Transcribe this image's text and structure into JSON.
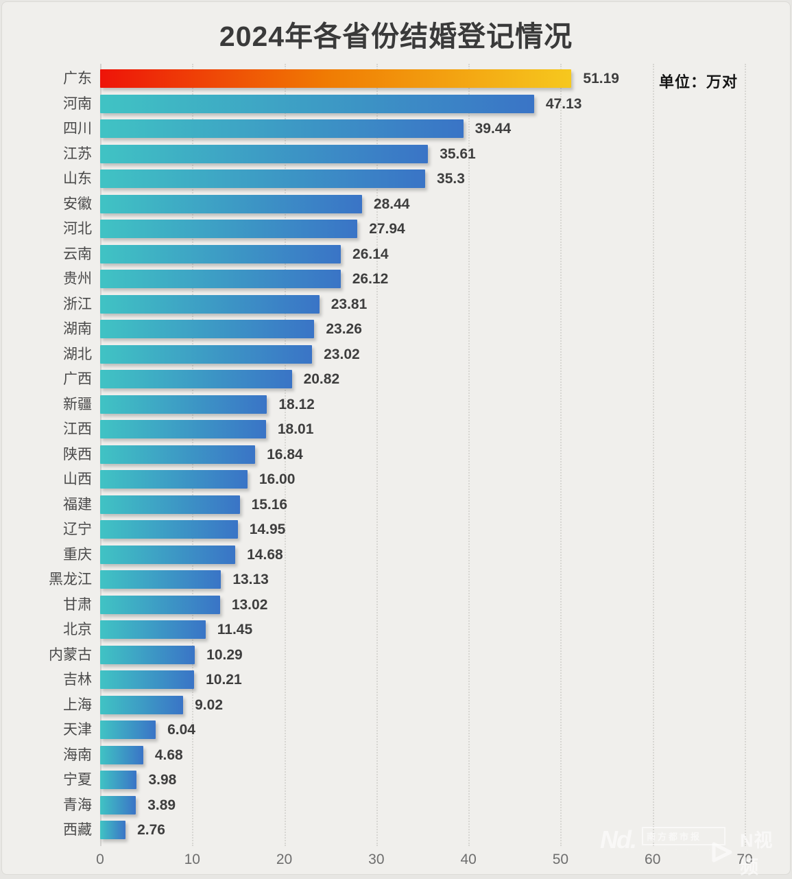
{
  "title": "2024年各省份结婚登记情况",
  "unit_label": "单位：万对",
  "chart_data": {
    "type": "bar",
    "orientation": "horizontal",
    "title": "2024年各省份结婚登记情况",
    "unit": "万对",
    "categories": [
      "广东",
      "河南",
      "四川",
      "江苏",
      "山东",
      "安徽",
      "河北",
      "云南",
      "贵州",
      "浙江",
      "湖南",
      "湖北",
      "广西",
      "新疆",
      "江西",
      "陕西",
      "山西",
      "福建",
      "辽宁",
      "重庆",
      "黑龙江",
      "甘肃",
      "北京",
      "内蒙古",
      "吉林",
      "上海",
      "天津",
      "海南",
      "宁夏",
      "青海",
      "西藏"
    ],
    "values": [
      51.19,
      47.13,
      39.44,
      35.61,
      35.3,
      28.44,
      27.94,
      26.14,
      26.12,
      23.81,
      23.26,
      23.02,
      20.82,
      18.12,
      18.01,
      16.84,
      16.0,
      15.16,
      14.95,
      14.68,
      13.13,
      13.02,
      11.45,
      10.29,
      10.21,
      9.02,
      6.04,
      4.68,
      3.98,
      3.89,
      2.76
    ],
    "value_labels": [
      "51.19",
      "47.13",
      "39.44",
      "35.61",
      "35.3",
      "28.44",
      "27.94",
      "26.14",
      "26.12",
      "23.81",
      "23.26",
      "23.02",
      "20.82",
      "18.12",
      "18.01",
      "16.84",
      "16.00",
      "15.16",
      "14.95",
      "14.68",
      "13.13",
      "13.02",
      "11.45",
      "10.29",
      "10.21",
      "9.02",
      "6.04",
      "4.68",
      "3.98",
      "3.89",
      "2.76"
    ],
    "highlight_index": 0,
    "xlim": [
      0,
      70
    ],
    "x_ticks": [
      "0",
      "10",
      "20",
      "30",
      "40",
      "50",
      "60",
      "70"
    ],
    "grid": "vertical-dotted",
    "legend": "none",
    "colors": {
      "background": "#f0efec",
      "bar_start": "#40c3c4",
      "bar_end": "#3a74c6",
      "highlight_start": "#ee1409",
      "highlight_mid": "#f07b03",
      "highlight_end": "#f6c81e",
      "title_color": "#3a3a3a",
      "label_color": "#4a4a4a",
      "value_color": "#3e3e3e",
      "tick_color": "#6e6e6e",
      "grid_color": "#d7d6d2"
    }
  },
  "watermarks": {
    "nd_logo": "Nd.",
    "nd_name": "南方都市报",
    "nd_tagline": "· · · · · · · ·",
    "nvideo": "N视频"
  }
}
